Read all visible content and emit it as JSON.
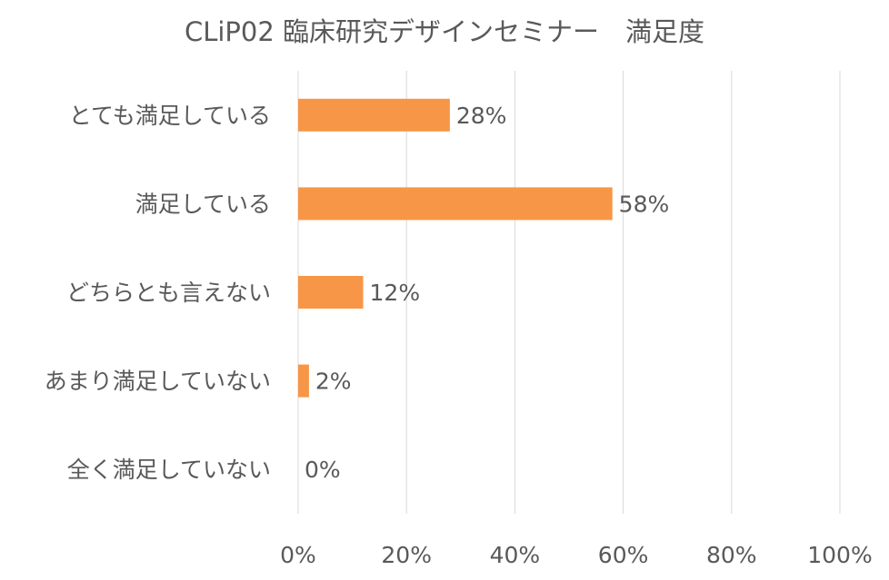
{
  "chart_data": {
    "type": "bar",
    "orientation": "horizontal",
    "title": "CLiP02 臨床研究デザインセミナー　満足度",
    "categories": [
      "とても満足している",
      "満足している",
      "どちらとも言えない",
      "あまり満足していない",
      "全く満足していない"
    ],
    "values": [
      28,
      58,
      12,
      2,
      0
    ],
    "data_labels": [
      "28%",
      "58%",
      "12%",
      "2%",
      "0%"
    ],
    "x_ticks": [
      "0%",
      "20%",
      "40%",
      "60%",
      "80%",
      "100%"
    ],
    "xlim": [
      0,
      100
    ],
    "grid": true,
    "bar_color": "#F79646",
    "grid_color": "#D9D9D9",
    "text_color": "#595959"
  }
}
